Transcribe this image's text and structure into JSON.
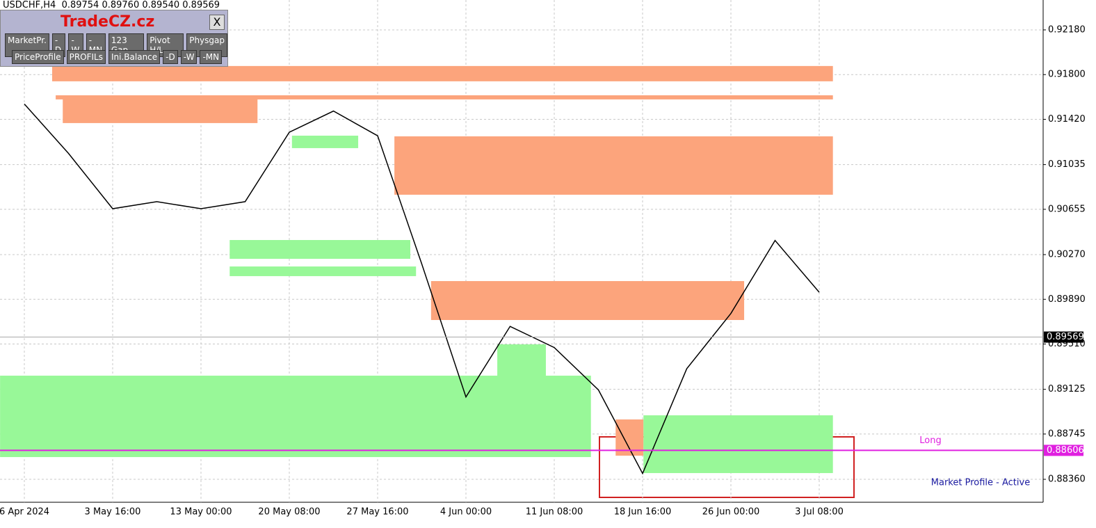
{
  "header": {
    "symbol": "USDCHF,H4",
    "ohlc": [
      "0.89754",
      "0.89760",
      "0.89540",
      "0.89569"
    ]
  },
  "panel": {
    "brand": "TradeCZ.cz",
    "close": "X",
    "row1": [
      "MarketPr.",
      "-D",
      "-W",
      "-MN",
      "123 Gap",
      "Pivot H/L",
      "Physgap"
    ],
    "row2": [
      "PriceProfile",
      "PROFILs",
      "Ini.Balance",
      "-D",
      "-W",
      "-MN"
    ]
  },
  "chart_data": {
    "type": "line",
    "categories": [
      "6 Apr 2024",
      null,
      "3 May 16:00",
      null,
      "13 May 00:00",
      null,
      "20 May 08:00",
      null,
      "27 May 16:00",
      null,
      "4 Jun 00:00",
      null,
      "11 Jun 08:00",
      null,
      "18 Jun 16:00",
      null,
      "26 Jun 00:00",
      null,
      "3 Jul 08:00"
    ],
    "values": [
      0.9155,
      0.9113,
      0.9066,
      0.9072,
      0.9066,
      0.9072,
      0.9131,
      0.9149,
      0.9128,
      0.9019,
      0.8906,
      0.8966,
      0.8948,
      0.8912,
      0.8841,
      0.893,
      0.8977,
      0.9039,
      0.8995
    ],
    "color": "#000000",
    "ylim": [
      0.88165,
      0.92434
    ],
    "yticks": [
      {
        "value": 0.9218,
        "label": "0.92180"
      },
      {
        "value": 0.918,
        "label": "0.91800"
      },
      {
        "value": 0.9142,
        "label": "0.91420"
      },
      {
        "value": 0.91035,
        "label": "0.91035"
      },
      {
        "value": 0.90655,
        "label": "0.90655"
      },
      {
        "value": 0.9027,
        "label": "0.90270"
      },
      {
        "value": 0.8989,
        "label": "0.89890"
      },
      {
        "value": 0.8951,
        "label": "0.89510"
      },
      {
        "value": 0.89125,
        "label": "0.89125"
      },
      {
        "value": 0.88745,
        "label": "0.88745"
      },
      {
        "value": 0.8836,
        "label": "0.88360"
      }
    ],
    "grid": true,
    "current_price": 0.89569,
    "long_level": 0.88606,
    "long_label": "Long",
    "status": "Market Profile - Active",
    "zones": [
      {
        "color": "#fca47c",
        "x_from": 0.63,
        "x_to": 18.31,
        "low": 0.91743,
        "high": 0.91873
      },
      {
        "color": "#fca47c",
        "x_from": 0.71,
        "x_to": 18.31,
        "low": 0.91589,
        "high": 0.91624
      },
      {
        "color": "#fca47c",
        "x_from": 0.87,
        "x_to": 5.28,
        "low": 0.91388,
        "high": 0.91606
      },
      {
        "color": "#fca47c",
        "x_from": 8.38,
        "x_to": 18.31,
        "low": 0.90779,
        "high": 0.91275
      },
      {
        "color": "#fca47c",
        "x_from": 9.21,
        "x_to": 16.3,
        "low": 0.89714,
        "high": 0.90045
      },
      {
        "color": "#fca47c",
        "x_from": 13.39,
        "x_to": 14.02,
        "low": 0.88561,
        "high": 0.88869
      },
      {
        "color": "#98f898",
        "x_from": -0.55,
        "x_to": 12.83,
        "low": 0.88549,
        "high": 0.89241
      },
      {
        "color": "#98f898",
        "x_from": 14.02,
        "x_to": 18.31,
        "low": 0.88413,
        "high": 0.88904
      },
      {
        "color": "#98f898",
        "x_from": 4.65,
        "x_to": 8.74,
        "low": 0.90234,
        "high": 0.90394
      },
      {
        "color": "#98f898",
        "x_from": 4.65,
        "x_to": 8.87,
        "low": 0.90087,
        "high": 0.90169
      },
      {
        "color": "#98f898",
        "x_from": 10.71,
        "x_to": 11.81,
        "low": 0.89022,
        "high": 0.89507
      },
      {
        "color": "#98f898",
        "x_from": 6.06,
        "x_to": 7.56,
        "low": 0.91175,
        "high": 0.91281
      }
    ]
  }
}
